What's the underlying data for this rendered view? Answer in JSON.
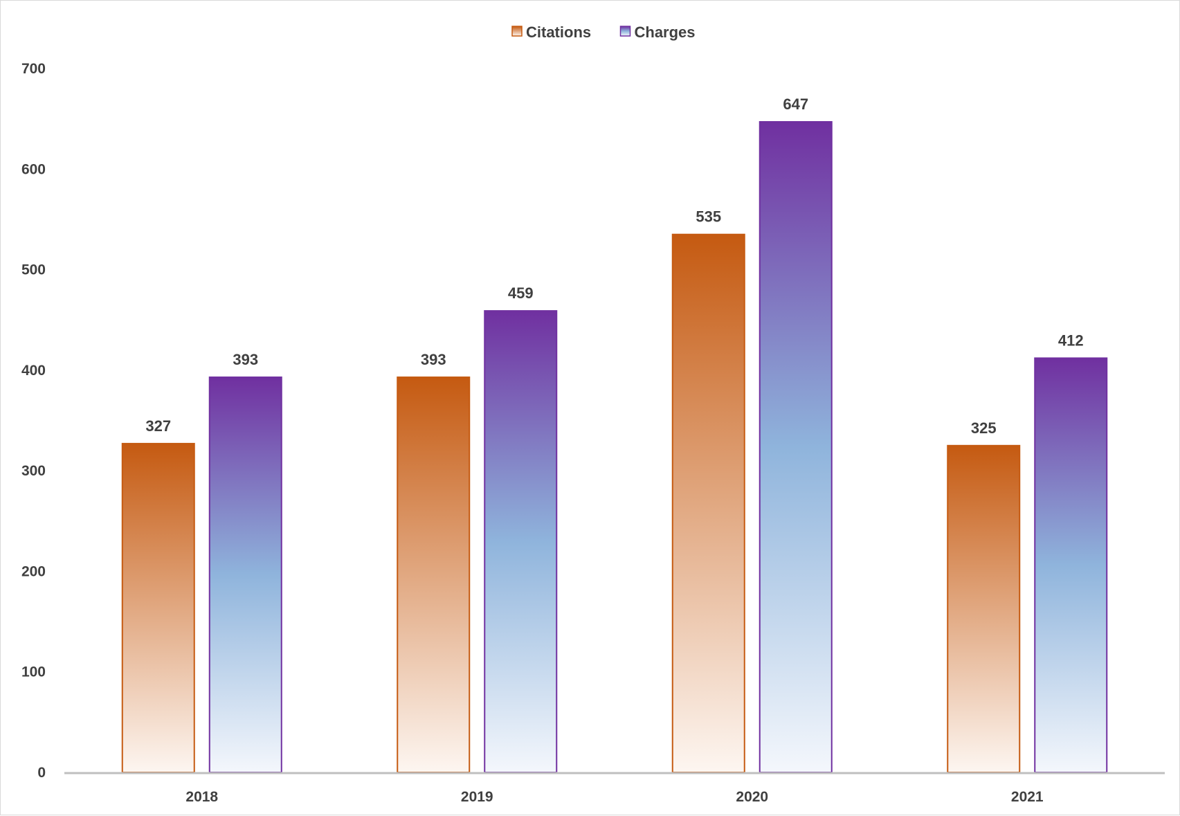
{
  "chart_data": {
    "type": "bar",
    "categories": [
      "2018",
      "2019",
      "2020",
      "2021"
    ],
    "series": [
      {
        "name": "Citations",
        "values": [
          327,
          393,
          535,
          325
        ],
        "color": "#c55a11",
        "gradient_end": "#fdf6f1"
      },
      {
        "name": "Charges",
        "values": [
          393,
          459,
          647,
          412
        ],
        "color": "#7030a0",
        "gradient_mid": "#8fb4dc",
        "gradient_end": "#f4f7fc"
      }
    ],
    "yticks": [
      "0",
      "100",
      "200",
      "300",
      "400",
      "500",
      "600",
      "700"
    ],
    "ylim": [
      0,
      700
    ],
    "grid": false,
    "legend_position": "top-center",
    "axis_color": "#bfbfbf",
    "text_color": "#404040"
  }
}
